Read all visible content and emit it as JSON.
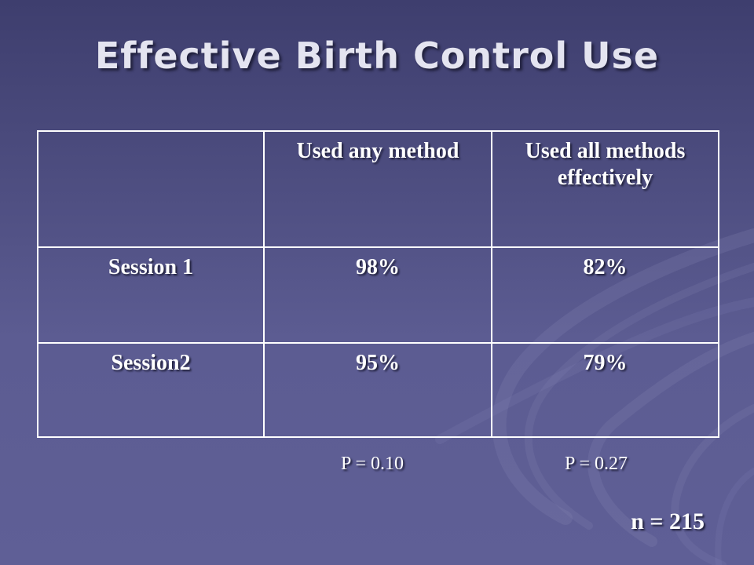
{
  "title": "Effective Birth Control Use",
  "table": {
    "headers": [
      "",
      "Used any method",
      "Used all methods effectively"
    ],
    "rows": [
      {
        "label": "Session 1",
        "any_method": "98%",
        "all_effective": "82%"
      },
      {
        "label": "Session2",
        "any_method": "95%",
        "all_effective": "79%"
      }
    ]
  },
  "p_values": {
    "any_method": "P = 0.10",
    "all_effective": "P = 0.27"
  },
  "sample_size": "n = 215"
}
